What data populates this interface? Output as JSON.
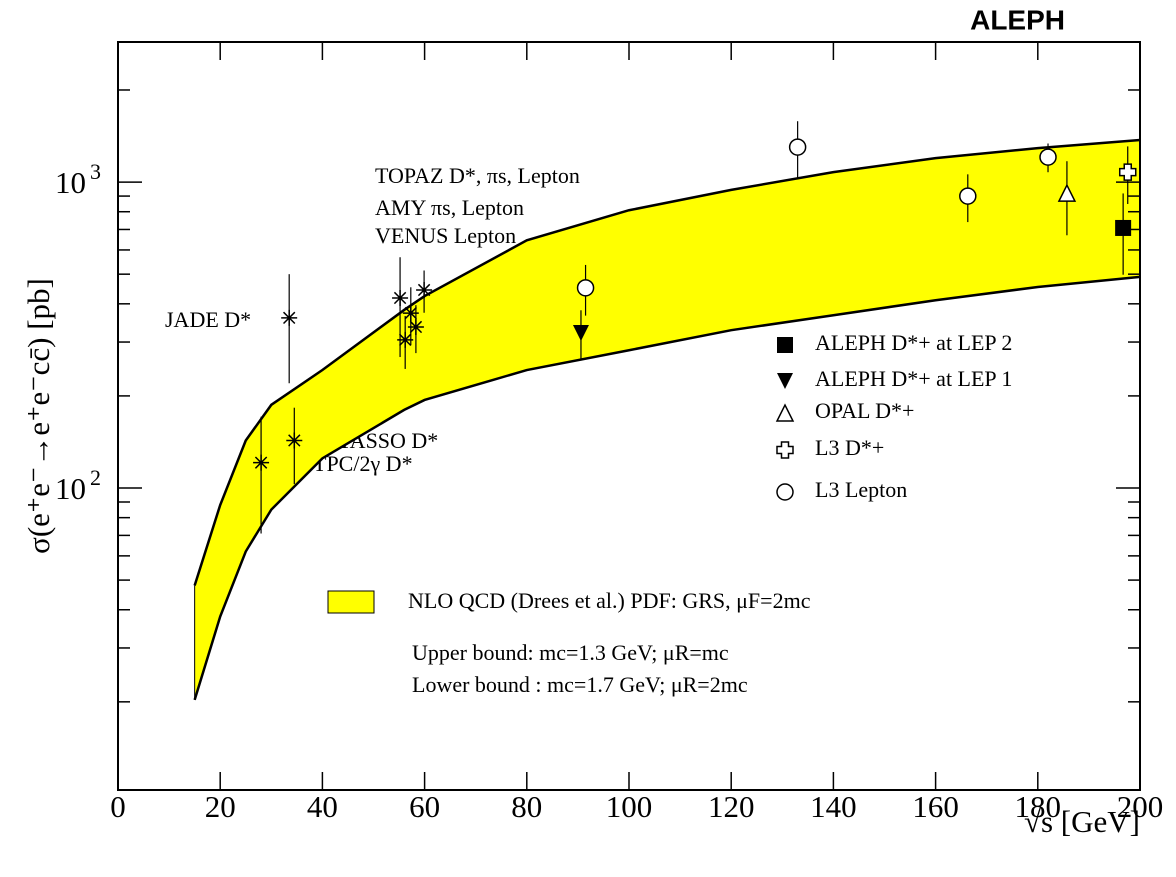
{
  "chart_data": {
    "type": "scatter",
    "title": "ALEPH",
    "x_label": "√s [GeV]",
    "y_label": "σ(e⁺e⁻→e⁺e⁻cc̄) [pb]",
    "xlim": [
      0,
      200
    ],
    "xticks": [
      0,
      20,
      40,
      60,
      80,
      100,
      120,
      140,
      160,
      180,
      200
    ],
    "ylim": [
      10.3,
      2870
    ],
    "log_y": true,
    "yticks": [
      {
        "value": 100,
        "label": "10",
        "exponent": "2"
      },
      {
        "value": 1000,
        "label": "10",
        "exponent": "3"
      }
    ],
    "y_minor_ticks": [
      20,
      30,
      40,
      50,
      60,
      70,
      80,
      90,
      200,
      300,
      400,
      500,
      600,
      700,
      800,
      900,
      2000
    ],
    "band": {
      "name": "NLO QCD (Drees et al.) PDF: GRS, μF=2mc",
      "notes": [
        "Upper bound:  mc=1.3 GeV; μR=mc",
        "Lower bound : mc=1.7 GeV; μR=2mc"
      ],
      "color": "#ffff00",
      "x": [
        15,
        20,
        25,
        30,
        40,
        56,
        60,
        80,
        100,
        120,
        140,
        160,
        180,
        200
      ],
      "upper": [
        48,
        88,
        143,
        187,
        243,
        382,
        424,
        645,
        809,
        943,
        1078,
        1198,
        1291,
        1372
      ],
      "lower": [
        20.3,
        38,
        62,
        85,
        125,
        180,
        194,
        243,
        282,
        328,
        367,
        411,
        454,
        490
      ]
    },
    "low_energy_points": {
      "x": [
        28,
        33.5,
        34.5,
        55.2,
        56.2,
        57.3,
        58.3,
        59.9
      ],
      "values": [
        121,
        360,
        143,
        418,
        305,
        373,
        336,
        444
      ],
      "errors": [
        50,
        140,
        40,
        150,
        60,
        80,
        60,
        70
      ]
    },
    "annotations": [
      "TOPAZ D*, πs, Lepton",
      "AMY πs, Lepton",
      "VENUS Lepton",
      "JADE D*",
      "TASSO D*",
      "TPC/2γ D*"
    ],
    "series": [
      {
        "name": "ALEPH D*+ at LEP 2",
        "marker": "square",
        "x": [
          196.7
        ],
        "values": [
          708
        ],
        "errors": [
          210
        ]
      },
      {
        "name": "ALEPH D*+ at LEP 1",
        "marker": "triangle-down",
        "x": [
          90.6
        ],
        "values": [
          321
        ],
        "errors": [
          60
        ]
      },
      {
        "name": "OPAL D*+",
        "marker": "triangle-up",
        "x": [
          185.7
        ],
        "values": [
          920
        ],
        "errors": [
          250
        ]
      },
      {
        "name": "L3 D*+",
        "marker": "cross",
        "x": [
          197.6
        ],
        "values": [
          1078
        ],
        "errors": [
          230
        ]
      },
      {
        "name": "L3 Lepton",
        "marker": "circle",
        "x": [
          91.5,
          133,
          166.3,
          182
        ],
        "values": [
          451,
          1301,
          900,
          1207
        ],
        "errors": [
          85,
          280,
          160,
          130
        ]
      }
    ]
  }
}
